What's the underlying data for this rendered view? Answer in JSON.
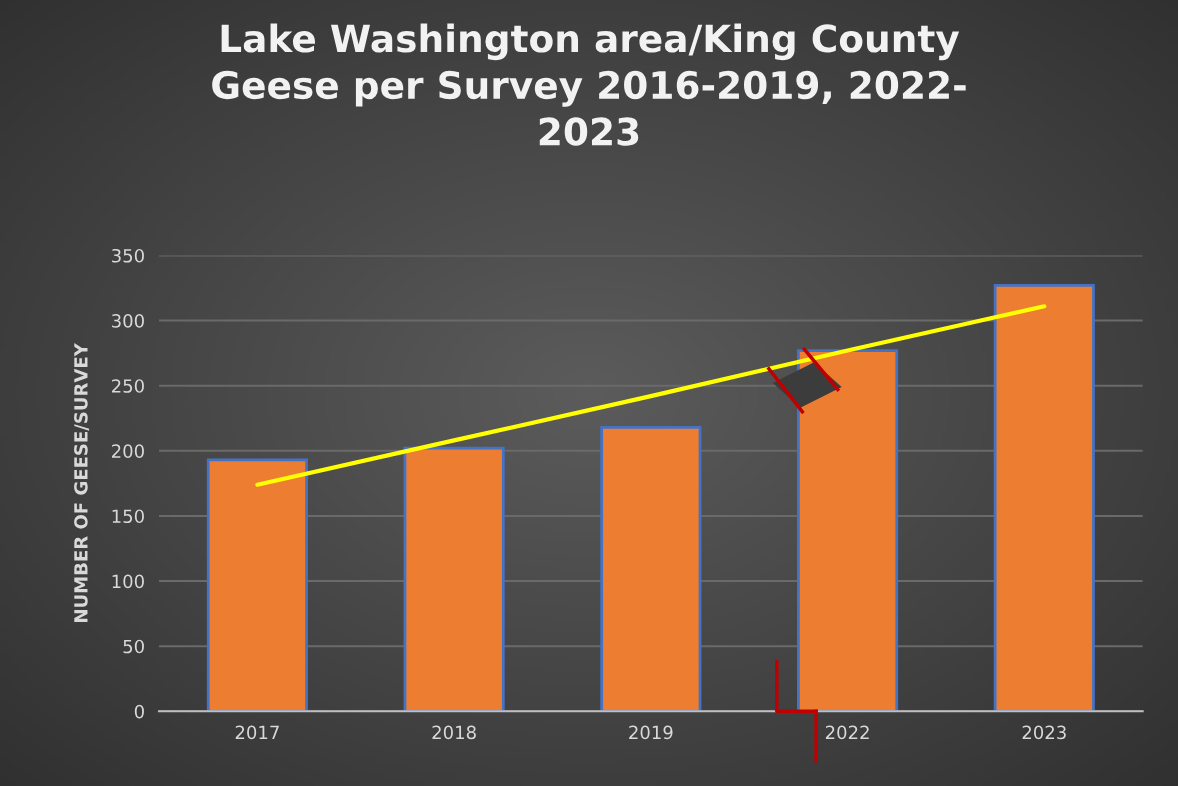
{
  "chart_data": {
    "type": "bar",
    "title": "Lake Washington area/King County\nGeese per Survey 2016-2019, 2022-\n2023",
    "ylabel": "NUMBER OF GEESE/SURVEY",
    "categories": [
      "2017",
      "2018",
      "2019",
      "2022",
      "2023"
    ],
    "series": [
      {
        "color": "#ed7d31",
        "values": [
          193,
          202,
          218,
          277,
          327
        ]
      },
      {
        "type": "line",
        "color": "#ffff00",
        "values": [
          174,
          208,
          242,
          277,
          311
        ]
      }
    ],
    "ylim": [
      0,
      350
    ],
    "yticks": [
      0,
      50,
      100,
      150,
      200,
      250,
      300,
      350
    ],
    "grid": "y",
    "legend": false
  }
}
